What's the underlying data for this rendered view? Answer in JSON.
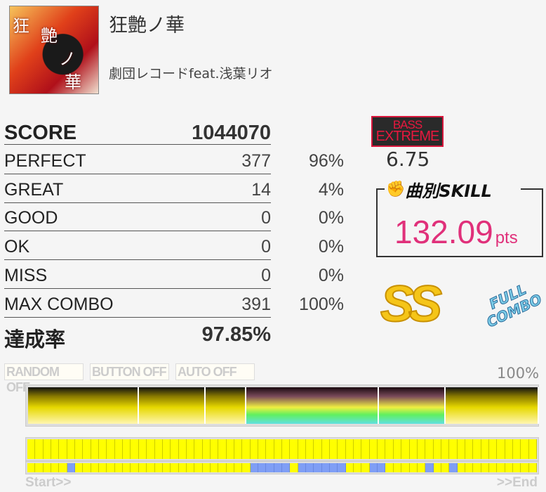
{
  "song": {
    "title": "狂艶ノ華",
    "artist": "劇団レコードfeat.浅葉リオ",
    "art_text": [
      "狂",
      "艶",
      "ノ",
      "華"
    ]
  },
  "score": {
    "label": "SCORE",
    "value": "1044070"
  },
  "judgements": [
    {
      "label": "PERFECT",
      "count": "377",
      "pct": "96%"
    },
    {
      "label": "GREAT",
      "count": "14",
      "pct": "4%"
    },
    {
      "label": "GOOD",
      "count": "0",
      "pct": "0%"
    },
    {
      "label": "OK",
      "count": "0",
      "pct": "0%"
    },
    {
      "label": "MISS",
      "count": "0",
      "pct": "0%"
    },
    {
      "label": "MAX COMBO",
      "count": "391",
      "pct": "100%"
    }
  ],
  "achievement": {
    "label": "達成率",
    "value": "97.85%"
  },
  "difficulty": {
    "badge_line1": "BASS",
    "badge_line2": "EXTREME",
    "level": "6.75",
    "color": "#d8163c"
  },
  "skill": {
    "title": "曲別SKILL",
    "value": "132.09",
    "unit": "pts"
  },
  "rank": "SS",
  "full_combo": "FULL COMBO",
  "options": [
    "RANDOM OFF",
    "BUTTON OFF",
    "AUTO OFF"
  ],
  "gauge": {
    "final_pct": "100%",
    "sections": [
      "yellow",
      "yellow",
      "yellow",
      "rainbow",
      "rainbow",
      "yellow"
    ]
  },
  "timeline": {
    "start": "Start>>",
    "end": ">>End",
    "cells": 64,
    "blue_cells": [
      5,
      28,
      29,
      30,
      31,
      32,
      34,
      35,
      36,
      37,
      38,
      39,
      43,
      44,
      50,
      53
    ]
  }
}
